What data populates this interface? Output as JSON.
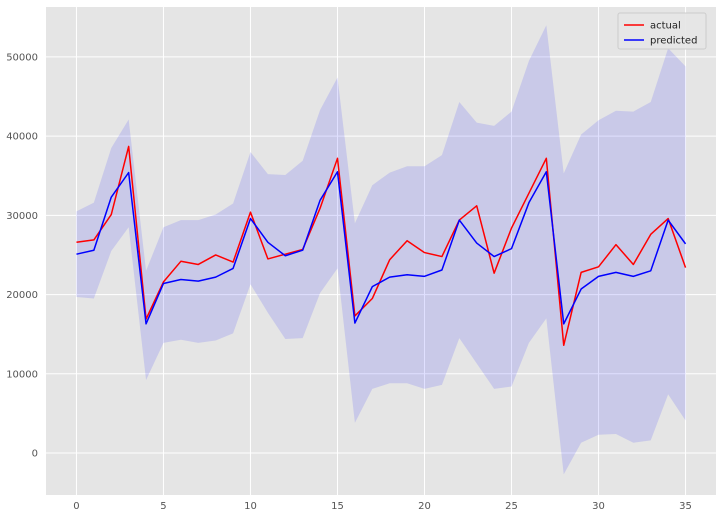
{
  "chart_data": {
    "type": "line",
    "x": [
      0,
      1,
      2,
      3,
      4,
      5,
      6,
      7,
      8,
      9,
      10,
      11,
      12,
      13,
      14,
      15,
      16,
      17,
      18,
      19,
      20,
      21,
      22,
      23,
      24,
      25,
      26,
      27,
      28,
      29,
      30,
      31,
      32,
      33,
      34,
      35
    ],
    "series": [
      {
        "name": "actual",
        "color": "#ff0000",
        "values": [
          26600,
          26900,
          30100,
          38700,
          16900,
          21600,
          24200,
          23800,
          25000,
          24100,
          30400,
          24500,
          25100,
          25700,
          30900,
          37200,
          17300,
          19500,
          24400,
          26800,
          25300,
          24800,
          29400,
          31200,
          22700,
          28400,
          32800,
          37200,
          13600,
          22800,
          23500,
          26300,
          23800,
          27600,
          29600,
          23400
        ]
      },
      {
        "name": "predicted",
        "color": "#0000ff",
        "values": [
          25100,
          25600,
          32300,
          35400,
          16300,
          21400,
          21900,
          21700,
          22200,
          23300,
          29600,
          26600,
          24900,
          25600,
          31900,
          35500,
          16400,
          21000,
          22200,
          22500,
          22300,
          23100,
          29400,
          26500,
          24800,
          25800,
          31600,
          35500,
          16300,
          20700,
          22300,
          22800,
          22300,
          23000,
          29400,
          26400
        ]
      }
    ],
    "band": {
      "color": "#0000ff",
      "upper": [
        30500,
        31600,
        38500,
        42100,
        23000,
        28500,
        29400,
        29400,
        30100,
        31500,
        38000,
        35200,
        35100,
        36900,
        43300,
        47400,
        29000,
        33800,
        35400,
        36200,
        36200,
        37600,
        44300,
        41700,
        41300,
        43100,
        49500,
        54000,
        35300,
        40200,
        42000,
        43200,
        43100,
        44300,
        51100,
        48800
      ],
      "lower": [
        19700,
        19500,
        25500,
        28500,
        9200,
        13900,
        14300,
        13900,
        14200,
        15100,
        21300,
        17700,
        14400,
        14500,
        20200,
        23300,
        3800,
        8100,
        8800,
        8800,
        8100,
        8600,
        14500,
        11300,
        8100,
        8400,
        13900,
        17000,
        -2700,
        1300,
        2300,
        2400,
        1300,
        1600,
        7400,
        4100
      ]
    },
    "xlim": [
      -1.75,
      36.75
    ],
    "ylim": [
      -5300,
      56300
    ],
    "xticks": [
      0,
      5,
      10,
      15,
      20,
      25,
      30,
      35
    ],
    "yticks": [
      0,
      10000,
      20000,
      30000,
      40000,
      50000
    ],
    "grid": true,
    "legend_position": "top-right",
    "style": {
      "background": "#e5e5e5",
      "grid_color": "#ffffff"
    }
  }
}
